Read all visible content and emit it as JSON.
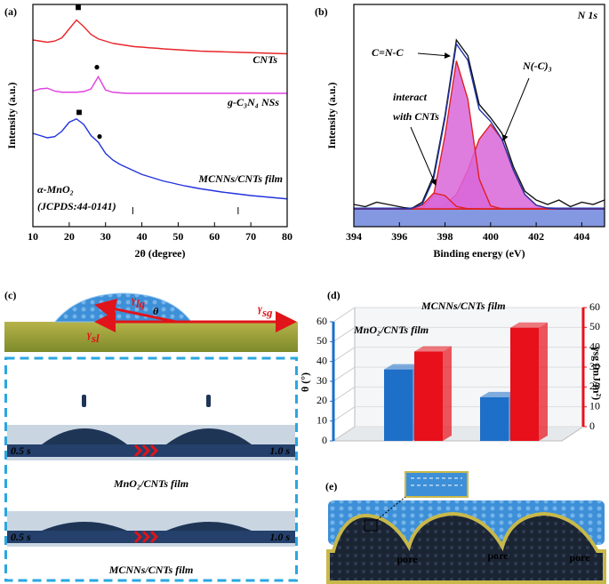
{
  "chart_data": [
    {
      "type": "line",
      "label": "(a)",
      "xlabel": "2θ (degree)",
      "ylabel": "Intensity (a.u.)",
      "xlim": [
        10,
        80
      ],
      "xticks": [
        10,
        20,
        30,
        40,
        50,
        60,
        70,
        80
      ],
      "ylim": [
        0,
        100
      ],
      "x": [
        10,
        12,
        14,
        16,
        18,
        20,
        22,
        24,
        26,
        28,
        30,
        32,
        34,
        36,
        38,
        40,
        42,
        44,
        46,
        48,
        50,
        52,
        54,
        56,
        58,
        60,
        62,
        64,
        66,
        68,
        70,
        72,
        74,
        76,
        78,
        80
      ],
      "series": [
        {
          "name": "CNTs",
          "color": "#e8252a",
          "values": [
            84,
            83.5,
            83,
            83.5,
            85,
            89,
            93,
            90,
            86.5,
            84.5,
            83.5,
            82.5,
            82,
            81.5,
            81,
            80.8,
            80.5,
            80.3,
            80,
            79.8,
            79.6,
            79.4,
            79.2,
            79,
            78.9,
            78.8,
            78.7,
            78.6,
            78.5,
            78.4,
            78.3,
            78.2,
            78.1,
            78,
            77.9,
            77.8
          ]
        },
        {
          "name": "g-C₃N₄ NSs",
          "color": "#e040e0",
          "values": [
            61,
            62,
            62.3,
            61,
            60.5,
            60.5,
            60.5,
            60.8,
            62,
            67.5,
            61.5,
            60.5,
            60.2,
            60,
            60,
            60,
            60,
            60,
            60,
            60,
            60,
            60,
            60,
            60,
            60,
            60,
            60,
            60,
            60,
            60,
            60,
            60,
            60,
            60,
            60,
            60
          ]
        },
        {
          "name": "MCNNs/CNTs film",
          "color": "#2233dd",
          "values": [
            42,
            41,
            40,
            40.5,
            43,
            47,
            48.5,
            46,
            41,
            38,
            33,
            30,
            28,
            26.5,
            25,
            23.5,
            22.5,
            21.5,
            20.5,
            19.8,
            19,
            18.3,
            17.7,
            17.1,
            16.6,
            16.1,
            15.6,
            15.2,
            14.8,
            14.4,
            14,
            13.7,
            13.4,
            13.1,
            12.8,
            12.5
          ]
        }
      ],
      "markers": [
        "■",
        "●",
        "■",
        "●"
      ],
      "ref_lines": [
        37.5,
        66.5
      ],
      "ref_label": [
        "α-MnO₂",
        "(JCPDS:44-0141)"
      ]
    },
    {
      "type": "line",
      "label": "(b)",
      "title": "N 1s",
      "xlabel": "Binding energy (eV)",
      "ylabel": "Intensity (a.u.)",
      "xlim": [
        394,
        405
      ],
      "xticks": [
        394,
        396,
        398,
        400,
        402,
        404
      ],
      "ylim": [
        0,
        100
      ],
      "x": [
        394,
        394.5,
        395,
        395.5,
        396,
        396.5,
        397,
        397.5,
        398,
        398.5,
        399,
        399.5,
        400,
        400.5,
        401,
        401.5,
        402,
        402.5,
        403,
        403.5,
        404,
        404.5,
        405
      ],
      "series": [
        {
          "color": "#e02020",
          "fill": "#d966d9",
          "values": [
            8,
            8,
            8,
            8,
            8,
            8,
            8,
            8.3,
            9.7,
            14.5,
            25.4,
            39.3,
            46,
            39.3,
            25.4,
            14.5,
            9.7,
            8.3,
            8,
            8,
            8,
            8,
            8
          ]
        },
        {
          "color": "#e02020",
          "fill": "#d966d9",
          "values": [
            8,
            8,
            8,
            8,
            8,
            8,
            8.4,
            14.1,
            41.1,
            74.6,
            57.4,
            21.5,
            9.4,
            8,
            8,
            8,
            8,
            8,
            8,
            8,
            8,
            8,
            8
          ]
        },
        {
          "color": "#e02020",
          "fill": "#d966d9",
          "values": [
            8,
            8,
            8,
            8,
            8,
            8.1,
            9.7,
            15.1,
            14,
            9.1,
            8.1,
            8,
            8,
            8,
            8,
            8,
            8,
            8,
            8,
            8,
            8,
            8,
            8
          ]
        },
        {
          "color": "#111111",
          "values": [
            10,
            9,
            11,
            10,
            9,
            8,
            11,
            23,
            50,
            84,
            77,
            55,
            49,
            42,
            27,
            16,
            12,
            10,
            12,
            9,
            11,
            10,
            12
          ]
        },
        {
          "color": "#2233aa",
          "values": [
            8,
            8,
            8,
            8,
            8,
            8.1,
            10.1,
            21.5,
            48.8,
            82.2,
            74.9,
            52.8,
            47.4,
            39.3,
            25.4,
            14.5,
            9.7,
            8.3,
            8,
            8,
            8,
            8,
            8
          ]
        }
      ],
      "annotations": [
        "C=N-C",
        "N(-C)₃",
        "interact",
        "with CNTs"
      ]
    },
    {
      "type": "bar3d",
      "label": "(d)",
      "categories": [
        "MnO₂/CNTs film",
        "MCNNs/CNTs film"
      ],
      "ylabel": "θ (°)",
      "y2label": "γsg (mJ/m²)",
      "ylim": [
        0,
        60
      ],
      "yticks": [
        0,
        10,
        20,
        30,
        40,
        50,
        60
      ],
      "y2lim": [
        0,
        60
      ],
      "y2ticks": [
        0,
        10,
        20,
        30,
        40,
        50,
        60
      ],
      "series": [
        {
          "color": "#1e6fc8",
          "values": [
            36,
            22
          ]
        },
        {
          "color": "#e8101a",
          "axis": "y2",
          "values": [
            45,
            57
          ]
        }
      ]
    }
  ],
  "panel_c": {
    "label": "(c)",
    "gamma_lg": {
      "symbol": "γ",
      "sub": "lg"
    },
    "gamma_sg": {
      "symbol": "γ",
      "sub": "sg"
    },
    "gamma_sl": {
      "symbol": "γ",
      "sub": "sl"
    },
    "theta": "θ",
    "rows": [
      {
        "left": "0.5 s",
        "right": "1.0 s",
        "caption": "MnO₂/CNTs film"
      },
      {
        "left": "0.5 s",
        "right": "1.0 s",
        "caption": "MCNNs/CNTs film"
      }
    ]
  },
  "panel_e": {
    "label": "(e)",
    "pores": [
      "pore",
      "pore",
      "pore"
    ]
  }
}
